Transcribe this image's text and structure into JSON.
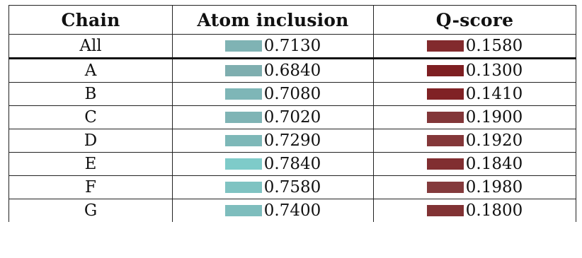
{
  "table": {
    "headers": [
      "Chain",
      "Atom inclusion",
      "Q-score"
    ],
    "rows": [
      {
        "chain": "All",
        "atom_inclusion": "0.7130",
        "atom_color": "#7fb3b4",
        "q_score": "0.1580",
        "q_color": "#822a2d"
      },
      {
        "chain": "A",
        "atom_inclusion": "0.6840",
        "atom_color": "#7eaeaf",
        "q_score": "0.1300",
        "q_color": "#7e1f22"
      },
      {
        "chain": "B",
        "atom_inclusion": "0.7080",
        "atom_color": "#7eb6b7",
        "q_score": "0.1410",
        "q_color": "#802225"
      },
      {
        "chain": "C",
        "atom_inclusion": "0.7020",
        "atom_color": "#7fb4b5",
        "q_score": "0.1900",
        "q_color": "#823638"
      },
      {
        "chain": "D",
        "atom_inclusion": "0.7290",
        "atom_color": "#7db8b8",
        "q_score": "0.1920",
        "q_color": "#843739"
      },
      {
        "chain": "E",
        "atom_inclusion": "0.7840",
        "atom_color": "#7ecbc9",
        "q_score": "0.1840",
        "q_color": "#812e31"
      },
      {
        "chain": "F",
        "atom_inclusion": "0.7580",
        "atom_color": "#7fc3c2",
        "q_score": "0.1980",
        "q_color": "#843a3c"
      },
      {
        "chain": "G",
        "atom_inclusion": "0.7400",
        "atom_color": "#7ebdbd",
        "q_score": "0.1800",
        "q_color": "#813234"
      }
    ]
  }
}
